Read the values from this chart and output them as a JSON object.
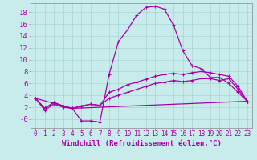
{
  "background_color": "#c8ecec",
  "grid_color": "#a8d4d4",
  "line_color": "#aa00aa",
  "xlabel": "Windchill (Refroidissement éolien,°C)",
  "xlabel_fontsize": 6.5,
  "ylabel_fontsize": 6.5,
  "tick_fontsize": 5.5,
  "xlim": [
    -0.5,
    23.5
  ],
  "ylim": [
    -1.5,
    19.5
  ],
  "yticks": [
    0,
    2,
    4,
    6,
    8,
    10,
    12,
    14,
    16,
    18
  ],
  "ytick_labels": [
    "-0",
    "2",
    "4",
    "6",
    "8",
    "10",
    "12",
    "14",
    "16",
    "18"
  ],
  "xticks": [
    0,
    1,
    2,
    3,
    4,
    5,
    6,
    7,
    8,
    9,
    10,
    11,
    12,
    13,
    14,
    15,
    16,
    17,
    18,
    19,
    20,
    21,
    22,
    23
  ],
  "line1_x": [
    0,
    1,
    2,
    3,
    4,
    5,
    6,
    7,
    8,
    9,
    10,
    11,
    12,
    13,
    14,
    15,
    16,
    17,
    18,
    19,
    20,
    21,
    22,
    23
  ],
  "line1_y": [
    3.5,
    1.5,
    2.5,
    2.0,
    1.8,
    -0.3,
    -0.3,
    -0.5,
    7.5,
    13.0,
    15.0,
    17.5,
    18.8,
    19.0,
    18.5,
    15.8,
    11.5,
    9.0,
    8.5,
    7.0,
    7.0,
    6.0,
    4.5,
    3.0
  ],
  "line2_x": [
    0,
    1,
    2,
    3,
    4,
    5,
    6,
    7,
    8,
    9,
    10,
    11,
    12,
    13,
    14,
    15,
    16,
    17,
    18,
    19,
    20,
    21,
    22,
    23
  ],
  "line2_y": [
    3.5,
    1.8,
    2.8,
    2.2,
    1.8,
    2.2,
    2.5,
    2.3,
    4.5,
    5.0,
    5.8,
    6.2,
    6.7,
    7.2,
    7.5,
    7.7,
    7.5,
    7.8,
    8.0,
    7.8,
    7.5,
    7.2,
    5.5,
    3.0
  ],
  "line3_x": [
    0,
    1,
    2,
    3,
    4,
    5,
    6,
    7,
    8,
    9,
    10,
    11,
    12,
    13,
    14,
    15,
    16,
    17,
    18,
    19,
    20,
    21,
    22,
    23
  ],
  "line3_y": [
    3.5,
    1.8,
    2.8,
    2.2,
    1.8,
    2.2,
    2.5,
    2.3,
    3.5,
    4.0,
    4.5,
    5.0,
    5.5,
    6.0,
    6.2,
    6.5,
    6.3,
    6.5,
    6.8,
    6.8,
    6.5,
    6.8,
    5.0,
    3.0
  ],
  "line4_x": [
    0,
    4,
    23
  ],
  "line4_y": [
    3.5,
    1.8,
    3.0
  ]
}
